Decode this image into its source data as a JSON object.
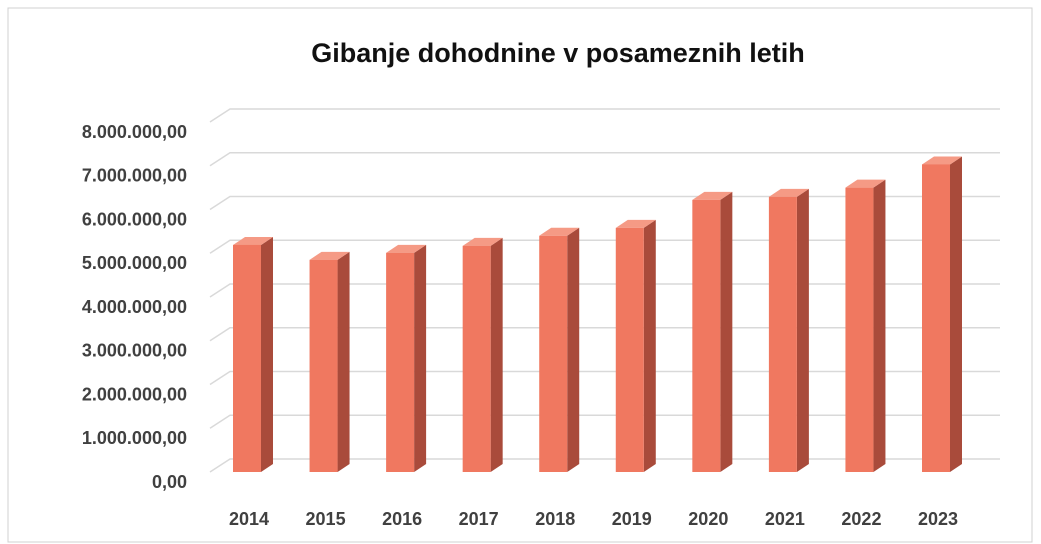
{
  "chart_data": {
    "type": "bar3d",
    "title": "Gibanje dohodnine v posameznih letih",
    "categories": [
      "2014",
      "2015",
      "2016",
      "2017",
      "2018",
      "2019",
      "2020",
      "2021",
      "2022",
      "2023"
    ],
    "values": [
      5190000,
      4850000,
      5010000,
      5170000,
      5400000,
      5580000,
      6220000,
      6290000,
      6500000,
      7030000
    ],
    "color": "#f07860",
    "ylim": [
      0,
      8000000
    ],
    "yticks": [
      {
        "value": 0,
        "label": "0,00"
      },
      {
        "value": 1000000,
        "label": "1.000.000,00"
      },
      {
        "value": 2000000,
        "label": "2.000.000,00"
      },
      {
        "value": 3000000,
        "label": "3.000.000,00"
      },
      {
        "value": 4000000,
        "label": "4.000.000,00"
      },
      {
        "value": 5000000,
        "label": "5.000.000,00"
      },
      {
        "value": 6000000,
        "label": "6.000.000,00"
      },
      {
        "value": 7000000,
        "label": "7.000.000,00"
      },
      {
        "value": 8000000,
        "label": "8.000.000,00"
      }
    ],
    "grid": true
  }
}
